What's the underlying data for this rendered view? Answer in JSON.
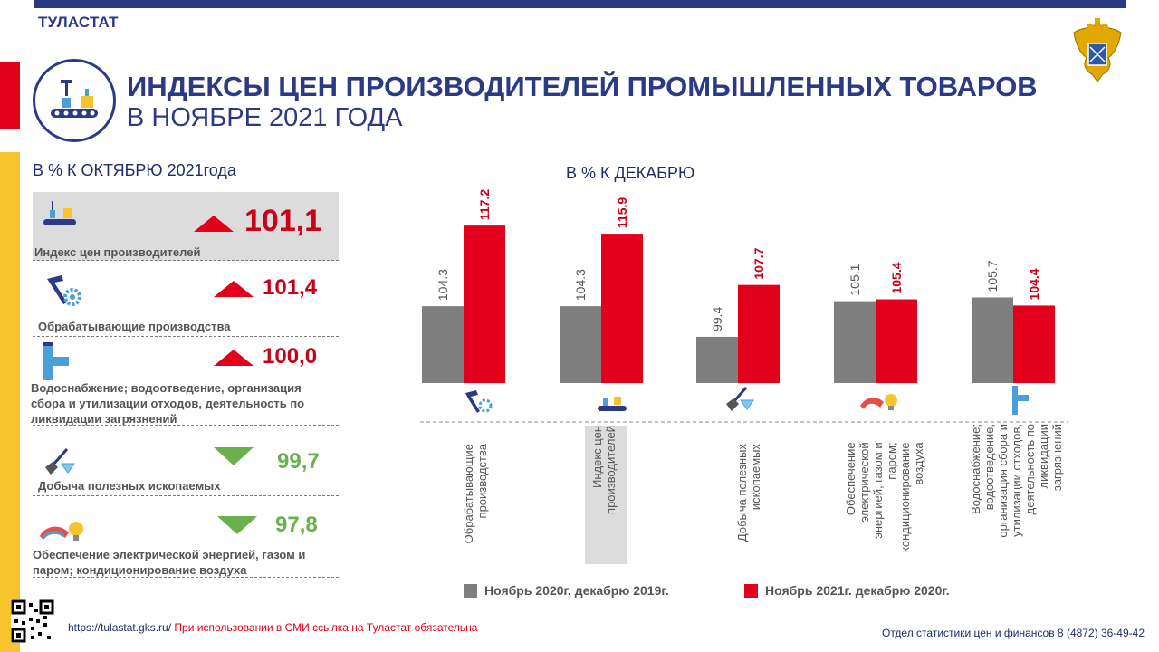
{
  "header": {
    "org": "ТУЛАСТАТ",
    "title_line1": "ИНДЕКСЫ ЦЕН ПРОИЗВОДИТЕЛЕЙ ПРОМЫШЛЕННЫХ ТОВАРОВ",
    "title_line2": "В НОЯБРЕ 2021 ГОДА"
  },
  "left_panel": {
    "heading": "В % К ОКТЯБРЮ 2021года",
    "rows": [
      {
        "label": "Индекс цен производителей",
        "value": "101,1",
        "direction": "up",
        "icon": "conveyor-icon"
      },
      {
        "label": "Обрабатывающие производства",
        "value": "101,4",
        "direction": "up",
        "icon": "hammer-gear-icon"
      },
      {
        "label": "Водоснабжение; водоотведение, организация сбора и утилизации отходов, деятельность по ликвидации загрязнений",
        "value": "100,0",
        "direction": "up",
        "icon": "pipe-icon"
      },
      {
        "label": "Добыча полезных ископаемых",
        "value": "99,7",
        "direction": "down",
        "icon": "shovel-diamond-icon"
      },
      {
        "label": "Обеспечение электрической энергией, газом и паром; кондиционирование воздуха",
        "value": "97,8",
        "direction": "down",
        "icon": "bulb-flame-icon"
      }
    ]
  },
  "right_panel": {
    "heading": "В % К ДЕКАБРЮ"
  },
  "chart_data": {
    "type": "bar",
    "categories": [
      "Обрабатывающие производства",
      "Индекс цен производителей",
      "Добыча полезных ископаемых",
      "Обеспечение электрической энергией, газом и паром; кондиционирование воздуха",
      "Водоснабжение; водоотведение, организация сбора и утилизации отходов, деятельность по ликвидации загрязнений"
    ],
    "series": [
      {
        "name": "Ноябрь 2020г. декабрю 2019г.",
        "values": [
          104.3,
          104.3,
          99.4,
          105.1,
          105.7
        ],
        "color": "#7f7f7f"
      },
      {
        "name": "Ноябрь 2021г. декабрю 2020г.",
        "values": [
          117.2,
          115.9,
          107.7,
          105.4,
          104.4
        ],
        "color": "#e2001a"
      }
    ],
    "data_labels": [
      [
        "104.3",
        "104.3",
        "99.4",
        "105.1",
        "105.7"
      ],
      [
        "117.2",
        "115.9",
        "107.7",
        "105.4",
        "104.4"
      ]
    ],
    "legend_position": "bottom",
    "grid": false
  },
  "legend": [
    {
      "label": "Ноябрь 2020г. декабрю 2019г.",
      "color": "#7f7f7f"
    },
    {
      "label": "Ноябрь 2021г. декабрю 2020г.",
      "color": "#e2001a"
    }
  ],
  "cat_labels": [
    "Обрабатывающие производства",
    "Индекс цен производителей",
    "Добыча полезных ископаемых",
    "Обеспечение электрической энергией, газом и паром; кондиционирование воздуха",
    "Водоснабжение; водоотведение, организация сбора и утилизации отходов, деятельность по ликвидации загрязнений"
  ],
  "footer": {
    "url": "https://tulastat.gks.ru/",
    "note": "При использовании в СМИ ссылка на Туластат обязательна",
    "dept": "Отдел статистики цен и финансов 8 (4872) 36-49-42"
  },
  "colors": {
    "brand_blue": "#2b3a84",
    "accent_red": "#e2001a",
    "accent_yellow": "#f7c42d",
    "decrease_green": "#6ab04c",
    "series_gray": "#7f7f7f"
  }
}
